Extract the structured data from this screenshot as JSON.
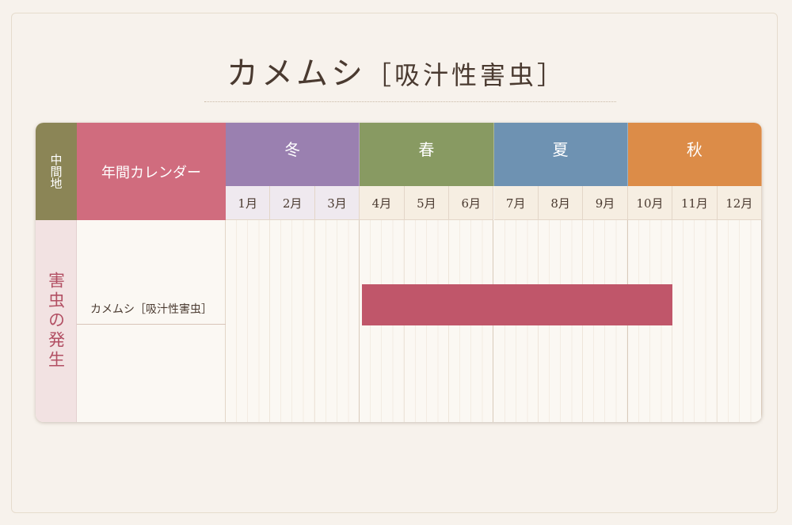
{
  "header": {
    "title": "カメムシ",
    "subtitle": "［吸汁性害虫］"
  },
  "table": {
    "region": "中間地",
    "calendar_label": "年間カレンダー",
    "seasons": [
      {
        "name": "冬",
        "color": "#9a80b0"
      },
      {
        "name": "春",
        "color": "#889a62"
      },
      {
        "name": "夏",
        "color": "#6e92b2"
      },
      {
        "name": "秋",
        "color": "#dc8c48"
      }
    ],
    "months": [
      "1月",
      "2月",
      "3月",
      "4月",
      "5月",
      "6月",
      "7月",
      "8月",
      "9月",
      "10月",
      "11月",
      "12月"
    ],
    "row_label": "害虫の発生",
    "pest": "カメムシ［吸汁性害虫］",
    "occurrence": {
      "start": 4,
      "end": 10,
      "color": "#c0566a"
    }
  }
}
